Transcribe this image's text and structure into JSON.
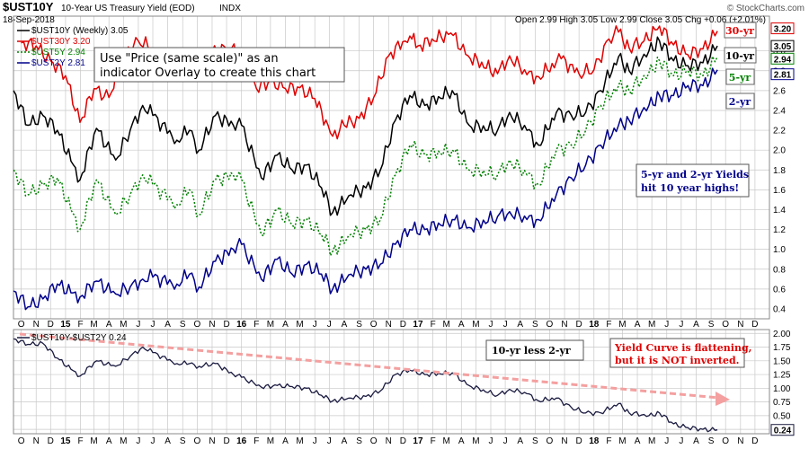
{
  "header": {
    "symbol": "$UST10Y",
    "description": "10-Year US Treasury Yield (EOD)",
    "exchange": "INDX",
    "date": "18-Sep-2018",
    "ohlc": "Open 2.99  High 3.05  Low 2.99  Close 3.05  Chg +0.06 (+2.01%)",
    "watermark": "© StockCharts.com"
  },
  "colors": {
    "y30": "#e00000",
    "y10": "#000000",
    "y5": "#008000",
    "y2": "#00008b",
    "spread": "#1a1a40",
    "arrow": "#f4a0a0",
    "grid": "#c8c8c8"
  },
  "annotations": {
    "overlay_note_line1": "Use \"Price (same scale)\" as an",
    "overlay_note_line2": "indicator Overlay to create this chart",
    "highs_line1": "5-yr and 2-yr Yields",
    "highs_line2": "hit 10 year highs!",
    "flattening_line1": "Yield Curve is flattening,",
    "flattening_line2": "but it is NOT inverted.",
    "spread_label": "10-yr less 2-yr",
    "tag_30": "30-yr",
    "tag_10": "10-yr",
    "tag_5": "5-yr",
    "tag_2": "2-yr"
  },
  "chart_data": [
    {
      "type": "line",
      "panel": "main",
      "ylim": [
        0.3,
        3.35
      ],
      "y_ticks": [
        "0.4",
        "0.6",
        "0.8",
        "1.0",
        "1.2",
        "1.4",
        "1.6",
        "1.8",
        "2.0",
        "2.2",
        "2.4",
        "2.6",
        "2.8",
        "3.0"
      ],
      "x_range": [
        "2014-09-15",
        "2018-12-31"
      ],
      "x_ticks": [
        "O",
        "N",
        "D",
        "15",
        "F",
        "M",
        "A",
        "M",
        "J",
        "J",
        "A",
        "S",
        "O",
        "N",
        "D",
        "16",
        "F",
        "M",
        "A",
        "M",
        "J",
        "J",
        "A",
        "S",
        "O",
        "N",
        "D",
        "17",
        "F",
        "M",
        "A",
        "M",
        "J",
        "J",
        "A",
        "S",
        "O",
        "N",
        "D",
        "18",
        "F",
        "M",
        "A",
        "M",
        "J",
        "J",
        "A",
        "S",
        "O",
        "N",
        "D"
      ],
      "grid": true,
      "series": [
        {
          "name": "$UST30Y 3.20",
          "key": "y30",
          "last_label": "3.20",
          "x": [
            "2014-10-01",
            "2014-11-01",
            "2014-12-01",
            "2015-01-01",
            "2015-01-31",
            "2015-03-01",
            "2015-04-01",
            "2015-05-01",
            "2015-06-01",
            "2015-07-01",
            "2015-08-01",
            "2015-09-01",
            "2015-10-01",
            "2015-11-01",
            "2015-12-01",
            "2016-01-01",
            "2016-02-01",
            "2016-03-01",
            "2016-04-01",
            "2016-05-01",
            "2016-06-01",
            "2016-07-08",
            "2016-08-01",
            "2016-09-01",
            "2016-10-01",
            "2016-11-01",
            "2016-12-15",
            "2017-01-01",
            "2017-03-10",
            "2017-04-15",
            "2017-06-15",
            "2017-07-10",
            "2017-08-15",
            "2017-09-08",
            "2017-10-25",
            "2017-12-01",
            "2018-01-01",
            "2018-02-01",
            "2018-02-21",
            "2018-03-15",
            "2018-04-15",
            "2018-05-17",
            "2018-06-15",
            "2018-07-15",
            "2018-08-15",
            "2018-09-14"
          ],
          "values": [
            3.08,
            3.05,
            2.9,
            2.75,
            2.28,
            2.62,
            2.53,
            2.95,
            3.1,
            3.02,
            2.85,
            2.9,
            2.88,
            3.0,
            3.02,
            2.98,
            2.62,
            2.7,
            2.62,
            2.63,
            2.52,
            2.14,
            2.25,
            2.32,
            2.53,
            2.95,
            3.15,
            3.05,
            3.18,
            2.95,
            2.77,
            2.95,
            2.76,
            2.74,
            2.92,
            2.77,
            2.81,
            3.12,
            3.19,
            3.03,
            3.1,
            3.25,
            3.06,
            2.96,
            3.02,
            3.2
          ]
        },
        {
          "name": "$UST10Y (Weekly) 3.05",
          "key": "y10",
          "last_label": "3.05",
          "x": [
            "2014-09-15",
            "2014-10-15",
            "2014-11-15",
            "2014-12-15",
            "2015-01-31",
            "2015-03-06",
            "2015-04-15",
            "2015-05-15",
            "2015-06-10",
            "2015-07-01",
            "2015-08-20",
            "2015-09-15",
            "2015-10-05",
            "2015-11-08",
            "2015-12-15",
            "2016-01-01",
            "2016-02-11",
            "2016-03-15",
            "2016-04-15",
            "2016-05-15",
            "2016-06-15",
            "2016-07-08",
            "2016-08-15",
            "2016-09-15",
            "2016-10-15",
            "2016-11-15",
            "2016-12-15",
            "2017-01-15",
            "2017-03-13",
            "2017-04-17",
            "2017-06-15",
            "2017-07-10",
            "2017-08-15",
            "2017-09-08",
            "2017-10-15",
            "2017-11-15",
            "2017-12-15",
            "2018-01-15",
            "2018-02-21",
            "2018-03-15",
            "2018-04-25",
            "2018-05-17",
            "2018-06-15",
            "2018-07-15",
            "2018-08-15",
            "2018-09-14"
          ],
          "values": [
            2.6,
            2.25,
            2.35,
            2.2,
            1.7,
            2.22,
            1.9,
            2.2,
            2.45,
            2.35,
            2.1,
            2.2,
            2.0,
            2.35,
            2.25,
            2.25,
            1.72,
            1.95,
            1.8,
            1.85,
            1.62,
            1.37,
            1.55,
            1.62,
            1.8,
            2.3,
            2.55,
            2.45,
            2.6,
            2.25,
            2.2,
            2.38,
            2.2,
            2.05,
            2.38,
            2.35,
            2.38,
            2.6,
            2.94,
            2.8,
            3.0,
            3.1,
            2.9,
            2.85,
            2.88,
            3.05
          ]
        },
        {
          "name": "$UST5Y 2.94",
          "key": "y5",
          "last_label": "2.94",
          "x": [
            "2014-09-15",
            "2014-10-15",
            "2014-11-15",
            "2014-12-15",
            "2015-01-31",
            "2015-03-06",
            "2015-04-15",
            "2015-05-15",
            "2015-06-10",
            "2015-07-01",
            "2015-08-20",
            "2015-09-15",
            "2015-10-05",
            "2015-11-08",
            "2015-12-15",
            "2016-01-01",
            "2016-02-11",
            "2016-03-15",
            "2016-04-15",
            "2016-05-15",
            "2016-06-15",
            "2016-07-08",
            "2016-08-15",
            "2016-09-15",
            "2016-10-15",
            "2016-11-15",
            "2016-12-15",
            "2017-01-15",
            "2017-03-13",
            "2017-04-17",
            "2017-06-15",
            "2017-07-10",
            "2017-08-15",
            "2017-09-08",
            "2017-10-15",
            "2017-11-15",
            "2017-12-15",
            "2018-01-15",
            "2018-02-21",
            "2018-03-15",
            "2018-04-25",
            "2018-05-17",
            "2018-06-15",
            "2018-07-15",
            "2018-08-15",
            "2018-09-14"
          ],
          "values": [
            1.8,
            1.55,
            1.65,
            1.72,
            1.2,
            1.7,
            1.35,
            1.55,
            1.75,
            1.65,
            1.45,
            1.6,
            1.35,
            1.7,
            1.75,
            1.7,
            1.15,
            1.4,
            1.25,
            1.3,
            1.15,
            0.98,
            1.15,
            1.2,
            1.3,
            1.75,
            2.05,
            1.95,
            2.0,
            1.8,
            1.75,
            1.9,
            1.75,
            1.65,
            2.0,
            2.05,
            2.2,
            2.45,
            2.65,
            2.6,
            2.78,
            2.9,
            2.75,
            2.8,
            2.75,
            2.94
          ]
        },
        {
          "name": "$UST2Y 2.81",
          "key": "y2",
          "last_label": "2.81",
          "x": [
            "2014-09-15",
            "2014-10-15",
            "2014-11-15",
            "2014-12-15",
            "2015-01-31",
            "2015-03-06",
            "2015-04-15",
            "2015-05-15",
            "2015-06-10",
            "2015-07-01",
            "2015-08-20",
            "2015-09-15",
            "2015-10-05",
            "2015-11-08",
            "2015-12-15",
            "2016-01-01",
            "2016-02-11",
            "2016-03-15",
            "2016-04-15",
            "2016-05-15",
            "2016-06-15",
            "2016-07-08",
            "2016-08-15",
            "2016-09-15",
            "2016-10-15",
            "2016-11-15",
            "2016-12-15",
            "2017-01-15",
            "2017-03-13",
            "2017-04-17",
            "2017-06-15",
            "2017-07-10",
            "2017-08-15",
            "2017-09-08",
            "2017-10-15",
            "2017-11-15",
            "2017-12-15",
            "2018-01-15",
            "2018-02-21",
            "2018-03-15",
            "2018-04-25",
            "2018-05-17",
            "2018-06-15",
            "2018-07-15",
            "2018-08-15",
            "2018-09-14"
          ],
          "values": [
            0.58,
            0.42,
            0.5,
            0.65,
            0.52,
            0.68,
            0.55,
            0.62,
            0.7,
            0.72,
            0.65,
            0.75,
            0.62,
            0.88,
            1.0,
            1.05,
            0.7,
            0.9,
            0.75,
            0.85,
            0.75,
            0.6,
            0.75,
            0.8,
            0.85,
            1.05,
            1.2,
            1.2,
            1.3,
            1.22,
            1.33,
            1.38,
            1.3,
            1.3,
            1.55,
            1.72,
            1.85,
            2.05,
            2.25,
            2.3,
            2.45,
            2.55,
            2.55,
            2.65,
            2.65,
            2.81
          ]
        }
      ]
    },
    {
      "type": "line",
      "panel": "spread",
      "ylim": [
        0.17,
        2.07
      ],
      "y_ticks": [
        "0.25",
        "0.50",
        "0.75",
        "1.00",
        "1.25",
        "1.50",
        "1.75",
        "2.00"
      ],
      "x_range": [
        "2014-09-15",
        "2018-12-31"
      ],
      "x_ticks": [
        "O",
        "N",
        "D",
        "15",
        "F",
        "M",
        "A",
        "M",
        "J",
        "J",
        "A",
        "S",
        "O",
        "N",
        "D",
        "16",
        "F",
        "M",
        "A",
        "M",
        "J",
        "J",
        "A",
        "S",
        "O",
        "N",
        "D",
        "17",
        "F",
        "M",
        "A",
        "M",
        "J",
        "J",
        "A",
        "S",
        "O",
        "N",
        "D",
        "18",
        "F",
        "M",
        "A",
        "M",
        "J",
        "J",
        "A",
        "S",
        "O",
        "N",
        "D"
      ],
      "series": [
        {
          "name": "$UST10Y-$UST2Y 0.24",
          "key": "spread",
          "last_label": "0.24",
          "x": [
            "2014-09-15",
            "2014-10-15",
            "2014-11-15",
            "2014-12-15",
            "2015-01-31",
            "2015-03-06",
            "2015-04-15",
            "2015-05-15",
            "2015-06-10",
            "2015-07-01",
            "2015-08-20",
            "2015-09-15",
            "2015-10-05",
            "2015-11-08",
            "2015-12-15",
            "2016-01-01",
            "2016-02-11",
            "2016-03-15",
            "2016-04-15",
            "2016-05-15",
            "2016-06-15",
            "2016-07-08",
            "2016-08-15",
            "2016-09-15",
            "2016-10-15",
            "2016-11-15",
            "2016-12-15",
            "2017-01-15",
            "2017-03-13",
            "2017-04-17",
            "2017-06-15",
            "2017-07-10",
            "2017-08-15",
            "2017-09-08",
            "2017-10-15",
            "2017-11-15",
            "2017-12-15",
            "2018-01-15",
            "2018-02-21",
            "2018-03-15",
            "2018-04-25",
            "2018-05-17",
            "2018-06-15",
            "2018-07-15",
            "2018-08-15",
            "2018-09-14"
          ],
          "values": [
            1.9,
            1.8,
            1.82,
            1.55,
            1.22,
            1.5,
            1.4,
            1.58,
            1.75,
            1.65,
            1.45,
            1.45,
            1.4,
            1.45,
            1.25,
            1.2,
            1.02,
            1.05,
            1.03,
            1.0,
            0.87,
            0.77,
            0.82,
            0.85,
            0.95,
            1.25,
            1.33,
            1.25,
            1.28,
            1.05,
            0.87,
            0.98,
            0.9,
            0.77,
            0.82,
            0.65,
            0.55,
            0.55,
            0.72,
            0.55,
            0.5,
            0.55,
            0.35,
            0.28,
            0.25,
            0.24
          ]
        }
      ]
    }
  ]
}
